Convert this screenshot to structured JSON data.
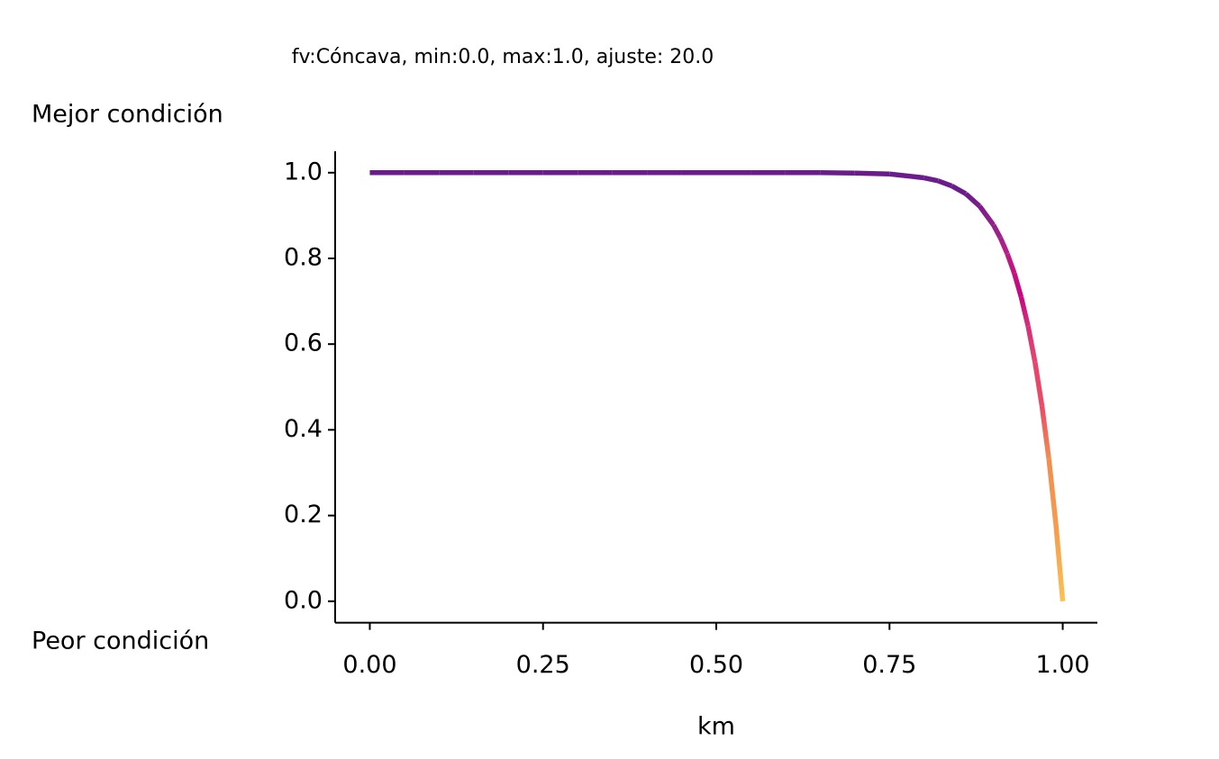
{
  "chart_data": {
    "type": "line",
    "title": "fv:Cóncava, min:0.0, max:1.0, ajuste: 20.0",
    "y_top_label": "Mejor condición",
    "y_bottom_label": "Peor condición",
    "x_label": "km",
    "x": [
      0,
      0.05,
      0.1,
      0.15,
      0.2,
      0.25,
      0.3,
      0.35,
      0.4,
      0.45,
      0.5,
      0.55,
      0.6,
      0.65,
      0.7,
      0.75,
      0.8,
      0.82,
      0.84,
      0.86,
      0.88,
      0.9,
      0.91,
      0.92,
      0.93,
      0.94,
      0.95,
      0.96,
      0.97,
      0.98,
      0.99,
      1.0
    ],
    "values": [
      1.0,
      1.0,
      1.0,
      1.0,
      1.0,
      1.0,
      1.0,
      1.0,
      1.0,
      1.0,
      1.0,
      1.0,
      1.0,
      1.0,
      0.999,
      0.997,
      0.988,
      0.981,
      0.969,
      0.951,
      0.922,
      0.878,
      0.848,
      0.811,
      0.766,
      0.71,
      0.642,
      0.558,
      0.456,
      0.332,
      0.182,
      0.0
    ],
    "colors": [
      "#6a1c8d",
      "#6a1c8d",
      "#6a1c8d",
      "#6a1c8d",
      "#6a1c8d",
      "#6a1c8d",
      "#6a1c8d",
      "#6a1c8d",
      "#6a1c8d",
      "#6a1c8d",
      "#6a1c8d",
      "#6a1c8d",
      "#6a1c8d",
      "#6a1c8d",
      "#6a1c8d",
      "#6a1c8d",
      "#6a1c8d",
      "#6a1c8d",
      "#6a1c8d",
      "#6a1c8d",
      "#7d1c8c",
      "#91208c",
      "#a3218a",
      "#b71d86",
      "#c4117f",
      "#c7077f",
      "#d5307a",
      "#e8446a",
      "#ea4a66",
      "#f48d4f",
      "#f59a4c",
      "#fbc153"
    ],
    "xlim": [
      -0.05,
      1.05
    ],
    "ylim": [
      -0.05,
      1.05
    ],
    "xticks": [
      {
        "value": 0,
        "label": "0.00"
      },
      {
        "value": 0.25,
        "label": "0.25"
      },
      {
        "value": 0.5,
        "label": "0.50"
      },
      {
        "value": 0.75,
        "label": "0.75"
      },
      {
        "value": 1,
        "label": "1.00"
      }
    ],
    "yticks": [
      {
        "value": 0,
        "label": "0.0"
      },
      {
        "value": 0.2,
        "label": "0.2"
      },
      {
        "value": 0.4,
        "label": "0.4"
      },
      {
        "value": 0.6,
        "label": "0.6"
      },
      {
        "value": 0.8,
        "label": "0.8"
      },
      {
        "value": 1,
        "label": "1.0"
      }
    ]
  }
}
